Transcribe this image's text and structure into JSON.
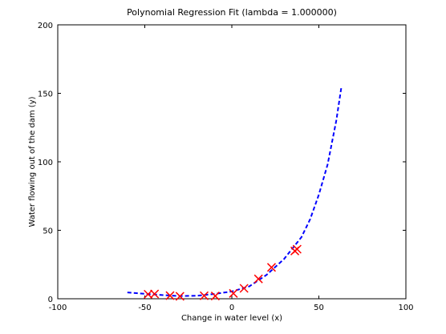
{
  "chart_data": {
    "type": "scatter",
    "title": "Polynomial Regression Fit (lambda = 1.000000)",
    "xlabel": "Change in water level (x)",
    "ylabel": "Water flowing out of the dam (y)",
    "xlim": [
      -100,
      100
    ],
    "ylim": [
      0,
      200
    ],
    "xticks": [
      "-100",
      "-50",
      "0",
      "50",
      "100"
    ],
    "yticks": [
      "0",
      "50",
      "100",
      "150",
      "200"
    ],
    "grid": false,
    "legend": "none",
    "series": [
      {
        "kind": "points",
        "marker": "x",
        "color": "#ff0000",
        "x": [
          -48.1,
          -44.4,
          -35.5,
          -29.8,
          -15.9,
          -9.5,
          0.9,
          7.0,
          15.3,
          22.8,
          36.2,
          37.5
        ],
        "y": [
          3.3,
          3.5,
          2.3,
          1.8,
          2.2,
          2.0,
          3.9,
          7.6,
          14.5,
          22.9,
          34.9,
          36.2
        ]
      },
      {
        "kind": "fit-line",
        "style": "dashed",
        "color": "#0000ff",
        "x": [
          -60,
          -50,
          -40,
          -30,
          -20,
          -10,
          0,
          10,
          20,
          30,
          40,
          45,
          50,
          55,
          60,
          63
        ],
        "y": [
          4.6,
          3.6,
          2.7,
          2.0,
          2.2,
          3.5,
          5.3,
          9.0,
          17.5,
          29.0,
          45.0,
          58.0,
          76.0,
          98.0,
          130.0,
          155.0
        ]
      }
    ]
  }
}
